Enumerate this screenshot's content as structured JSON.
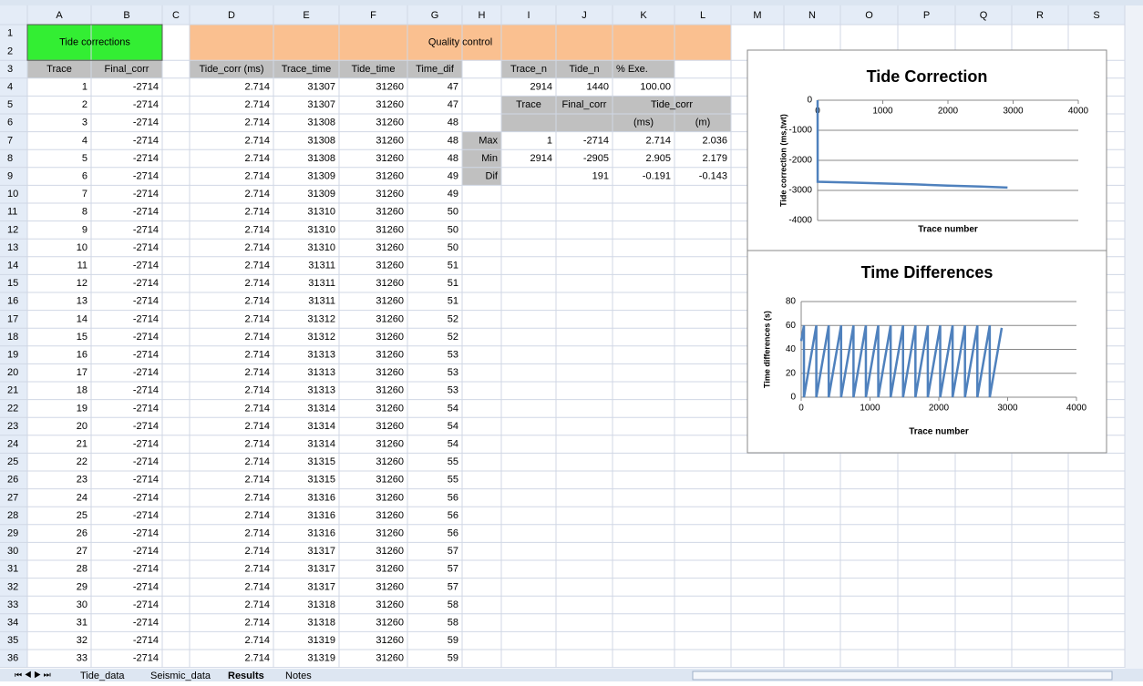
{
  "columns": [
    "A",
    "B",
    "C",
    "D",
    "E",
    "F",
    "G",
    "H",
    "I",
    "J",
    "K",
    "L",
    "M",
    "N",
    "O",
    "P",
    "Q",
    "R",
    "S"
  ],
  "row_numbers": [
    1,
    2,
    3,
    4,
    5,
    6,
    7,
    8,
    9,
    10,
    11,
    12,
    13,
    14,
    15,
    16,
    17,
    18,
    19,
    20,
    21,
    22,
    23,
    24,
    25,
    26,
    27,
    28,
    29,
    30,
    31,
    32,
    33,
    34,
    35,
    36
  ],
  "header": {
    "tide_corrections": "Tide corrections",
    "quality_control": "Quality control"
  },
  "table": {
    "headers": [
      "Trace",
      "Final_corr",
      "Tide_corr (ms)",
      "Trace_time",
      "Tide_time",
      "Time_dif"
    ],
    "rows": [
      [
        1,
        -2714,
        2.714,
        31307,
        31260,
        47
      ],
      [
        2,
        -2714,
        2.714,
        31307,
        31260,
        47
      ],
      [
        3,
        -2714,
        2.714,
        31308,
        31260,
        48
      ],
      [
        4,
        -2714,
        2.714,
        31308,
        31260,
        48
      ],
      [
        5,
        -2714,
        2.714,
        31308,
        31260,
        48
      ],
      [
        6,
        -2714,
        2.714,
        31309,
        31260,
        49
      ],
      [
        7,
        -2714,
        2.714,
        31309,
        31260,
        49
      ],
      [
        8,
        -2714,
        2.714,
        31310,
        31260,
        50
      ],
      [
        9,
        -2714,
        2.714,
        31310,
        31260,
        50
      ],
      [
        10,
        -2714,
        2.714,
        31310,
        31260,
        50
      ],
      [
        11,
        -2714,
        2.714,
        31311,
        31260,
        51
      ],
      [
        12,
        -2714,
        2.714,
        31311,
        31260,
        51
      ],
      [
        13,
        -2714,
        2.714,
        31311,
        31260,
        51
      ],
      [
        14,
        -2714,
        2.714,
        31312,
        31260,
        52
      ],
      [
        15,
        -2714,
        2.714,
        31312,
        31260,
        52
      ],
      [
        16,
        -2714,
        2.714,
        31313,
        31260,
        53
      ],
      [
        17,
        -2714,
        2.714,
        31313,
        31260,
        53
      ],
      [
        18,
        -2714,
        2.714,
        31313,
        31260,
        53
      ],
      [
        19,
        -2714,
        2.714,
        31314,
        31260,
        54
      ],
      [
        20,
        -2714,
        2.714,
        31314,
        31260,
        54
      ],
      [
        21,
        -2714,
        2.714,
        31314,
        31260,
        54
      ],
      [
        22,
        -2714,
        2.714,
        31315,
        31260,
        55
      ],
      [
        23,
        -2714,
        2.714,
        31315,
        31260,
        55
      ],
      [
        24,
        -2714,
        2.714,
        31316,
        31260,
        56
      ],
      [
        25,
        -2714,
        2.714,
        31316,
        31260,
        56
      ],
      [
        26,
        -2714,
        2.714,
        31316,
        31260,
        56
      ],
      [
        27,
        -2714,
        2.714,
        31317,
        31260,
        57
      ],
      [
        28,
        -2714,
        2.714,
        31317,
        31260,
        57
      ],
      [
        29,
        -2714,
        2.714,
        31317,
        31260,
        57
      ],
      [
        30,
        -2714,
        2.714,
        31318,
        31260,
        58
      ],
      [
        31,
        -2714,
        2.714,
        31318,
        31260,
        58
      ],
      [
        32,
        -2714,
        2.714,
        31319,
        31260,
        59
      ],
      [
        33,
        -2714,
        2.714,
        31319,
        31260,
        59
      ]
    ]
  },
  "qc": {
    "summary_headers": [
      "Trace_n",
      "Tide_n",
      "% Exe."
    ],
    "summary_values": [
      2914,
      1440,
      "100.00"
    ],
    "stats_headers": [
      "Trace",
      "Final_corr",
      "Tide_corr"
    ],
    "units": [
      "(ms)",
      "(m)"
    ],
    "stats": [
      {
        "label": "Max",
        "values": [
          1,
          -2714,
          2.714,
          2.036
        ]
      },
      {
        "label": "Min",
        "values": [
          2914,
          -2905,
          2.905,
          2.179
        ]
      },
      {
        "label": "Dif",
        "values": [
          null,
          191,
          -0.191,
          -0.143
        ]
      }
    ]
  },
  "charts": [
    {
      "type": "line",
      "title": "Tide Correction",
      "x_label": "Trace number",
      "y_label": "Tide correction (ms,twt)",
      "xlim": [
        0,
        4000
      ],
      "ylim": [
        -4000,
        0
      ],
      "xticks": [
        0,
        1000,
        2000,
        3000,
        4000
      ],
      "yticks": [
        0,
        -1000,
        -2000,
        -3000,
        -4000
      ],
      "color": "#4f81bd",
      "x": [
        0,
        1,
        500,
        1000,
        1500,
        2000,
        2500,
        2914
      ],
      "values": [
        0,
        -2714,
        -2740,
        -2770,
        -2800,
        -2840,
        -2870,
        -2905
      ]
    },
    {
      "type": "line",
      "title": "Time Differences",
      "x_label": "Trace number",
      "y_label": "Time differences (s)",
      "xlim": [
        0,
        4000
      ],
      "ylim": [
        0,
        80
      ],
      "xticks": [
        0,
        1000,
        2000,
        3000,
        4000
      ],
      "yticks": [
        0,
        20,
        40,
        60,
        80
      ],
      "color": "#4f81bd",
      "x": [
        0,
        40,
        40,
        220,
        220,
        400,
        400,
        580,
        580,
        760,
        760,
        940,
        940,
        1120,
        1120,
        1300,
        1300,
        1480,
        1480,
        1660,
        1660,
        1840,
        1840,
        2020,
        2020,
        2200,
        2200,
        2380,
        2380,
        2560,
        2560,
        2740,
        2740,
        2914
      ],
      "values": [
        47,
        60,
        0,
        60,
        0,
        60,
        0,
        60,
        0,
        60,
        0,
        60,
        0,
        60,
        0,
        60,
        0,
        60,
        0,
        60,
        0,
        60,
        0,
        60,
        0,
        60,
        0,
        60,
        0,
        60,
        0,
        60,
        0,
        58
      ]
    }
  ],
  "tabs": [
    "Tide_data",
    "Seismic_data",
    "Results",
    "Notes"
  ]
}
